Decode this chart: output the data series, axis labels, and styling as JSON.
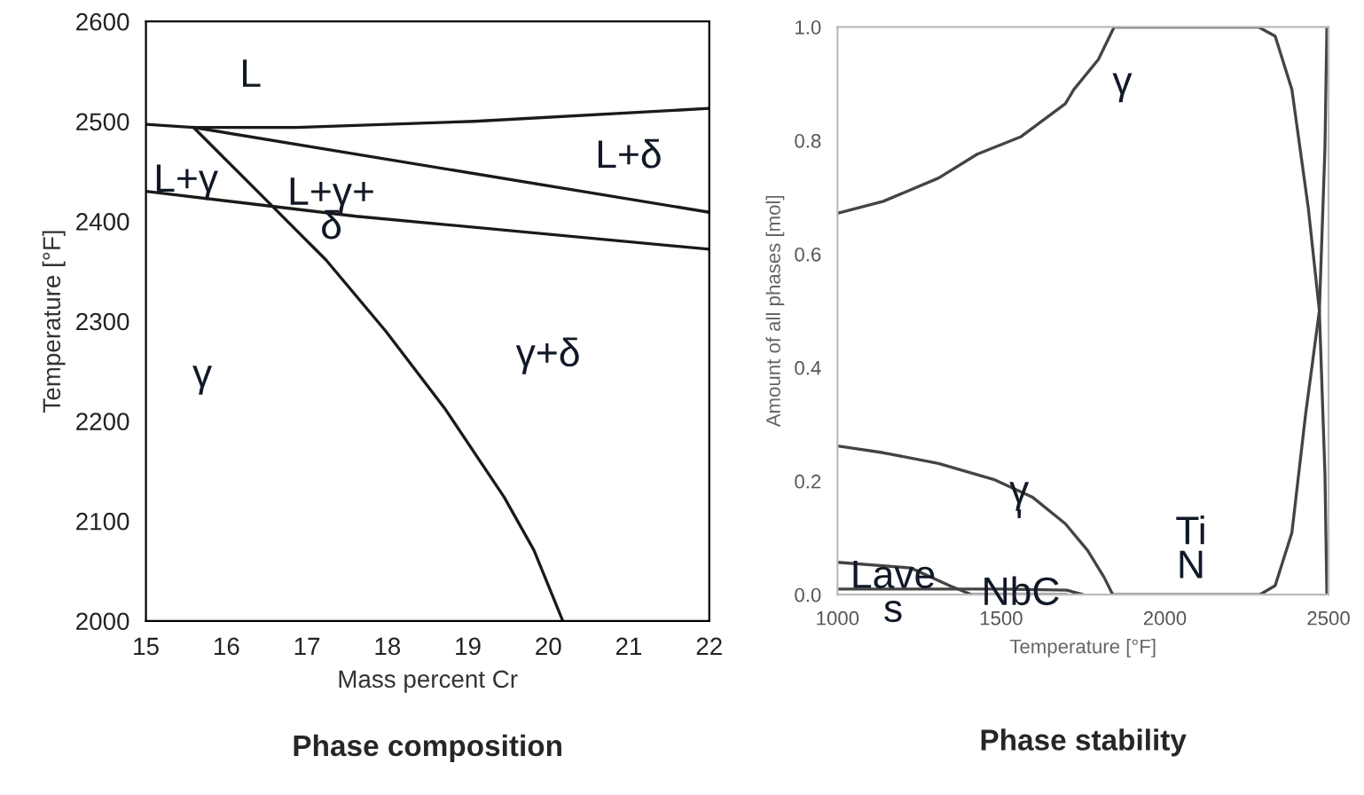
{
  "chart_data": [
    {
      "type": "line",
      "title": "Phase composition",
      "xlabel": "Mass percent Cr",
      "ylabel": "Temperature [°F]",
      "xlim": [
        15,
        22
      ],
      "ylim": [
        2000,
        2600
      ],
      "xticks": [
        15,
        16,
        17,
        18,
        19,
        20,
        21,
        22
      ],
      "yticks": [
        2000,
        2100,
        2200,
        2300,
        2400,
        2500,
        2600
      ],
      "grid": false,
      "legend": false,
      "series": [
        {
          "color": "#1a1a1a",
          "x": [
            15,
            15.59,
            16.87,
            19.08,
            22
          ],
          "values": [
            2497,
            2494,
            2494,
            2500,
            2513
          ]
        },
        {
          "color": "#1a1a1a",
          "x": [
            15.59,
            22
          ],
          "values": [
            2494,
            2409
          ]
        },
        {
          "color": "#1a1a1a",
          "x": [
            15,
            17.61,
            22
          ],
          "values": [
            2430,
            2405,
            2372
          ]
        },
        {
          "color": "#1a1a1a",
          "x": [
            15.59,
            16.51,
            17.24,
            17.98,
            18.71,
            19.45,
            19.82,
            20.18
          ],
          "values": [
            2494,
            2420,
            2361,
            2290,
            2213,
            2124,
            2071,
            2000
          ]
        }
      ],
      "annotations": [
        "L",
        "L+γ",
        "L+γ+\nδ",
        "L+δ",
        "γ+δ",
        "γ"
      ]
    },
    {
      "type": "line",
      "title": "Phase stability",
      "xlabel": "Temperature [°F]",
      "ylabel": "Amount of all phases [mol]",
      "xlim": [
        1000,
        2500
      ],
      "ylim": [
        0,
        1
      ],
      "xticks": [
        1000,
        1500,
        2000,
        2500
      ],
      "yticks": [
        {
          "value": 0,
          "label": "0.0"
        },
        {
          "value": 0.2,
          "label": "0.2"
        },
        {
          "value": 0.4,
          "label": "0.4"
        },
        {
          "value": 0.6,
          "label": "0.6"
        },
        {
          "value": 0.8,
          "label": "0.8"
        },
        {
          "value": 1,
          "label": "1.0"
        }
      ],
      "grid": false,
      "legend": false,
      "series": [
        {
          "color": "#444444",
          "x": [
            1000,
            1140,
            1309,
            1427,
            1561,
            1696,
            1722,
            1797,
            1845,
            2286,
            2337,
            2388,
            2438,
            2472,
            2489,
            2495
          ],
          "values": [
            0.672,
            0.693,
            0.734,
            0.776,
            0.807,
            0.865,
            0.89,
            0.943,
            1.0,
            1.0,
            0.984,
            0.89,
            0.682,
            0.5,
            0.214,
            0
          ]
        },
        {
          "color": "#444444",
          "x": [
            2290,
            2337,
            2388,
            2430,
            2472,
            2489,
            2495
          ],
          "values": [
            0,
            0.016,
            0.109,
            0.318,
            0.5,
            0.786,
            1.0
          ]
        },
        {
          "color": "#444444",
          "x": [
            1000,
            1140,
            1309,
            1477,
            1595,
            1696,
            1764,
            1814,
            1841,
            2290
          ],
          "values": [
            0.262,
            0.25,
            0.231,
            0.203,
            0.172,
            0.125,
            0.078,
            0.031,
            0,
            0
          ]
        },
        {
          "color": "#444444",
          "x": [
            1000,
            1224,
            1342,
            1410,
            1700
          ],
          "values": [
            0.057,
            0.047,
            0.016,
            0,
            0
          ]
        },
        {
          "color": "#444444",
          "x": [
            1000,
            1500,
            1700,
            1750
          ],
          "values": [
            0.01,
            0.01,
            0.008,
            0
          ]
        }
      ],
      "annotations": [
        "γ",
        "γ\n'",
        {
          "text": "Lave\ns",
          "x": 1170,
          "y": 0.0
        },
        {
          "text": "NbC",
          "x": 1560,
          "y": 0.0
        },
        "Ti\nN"
      ]
    }
  ]
}
